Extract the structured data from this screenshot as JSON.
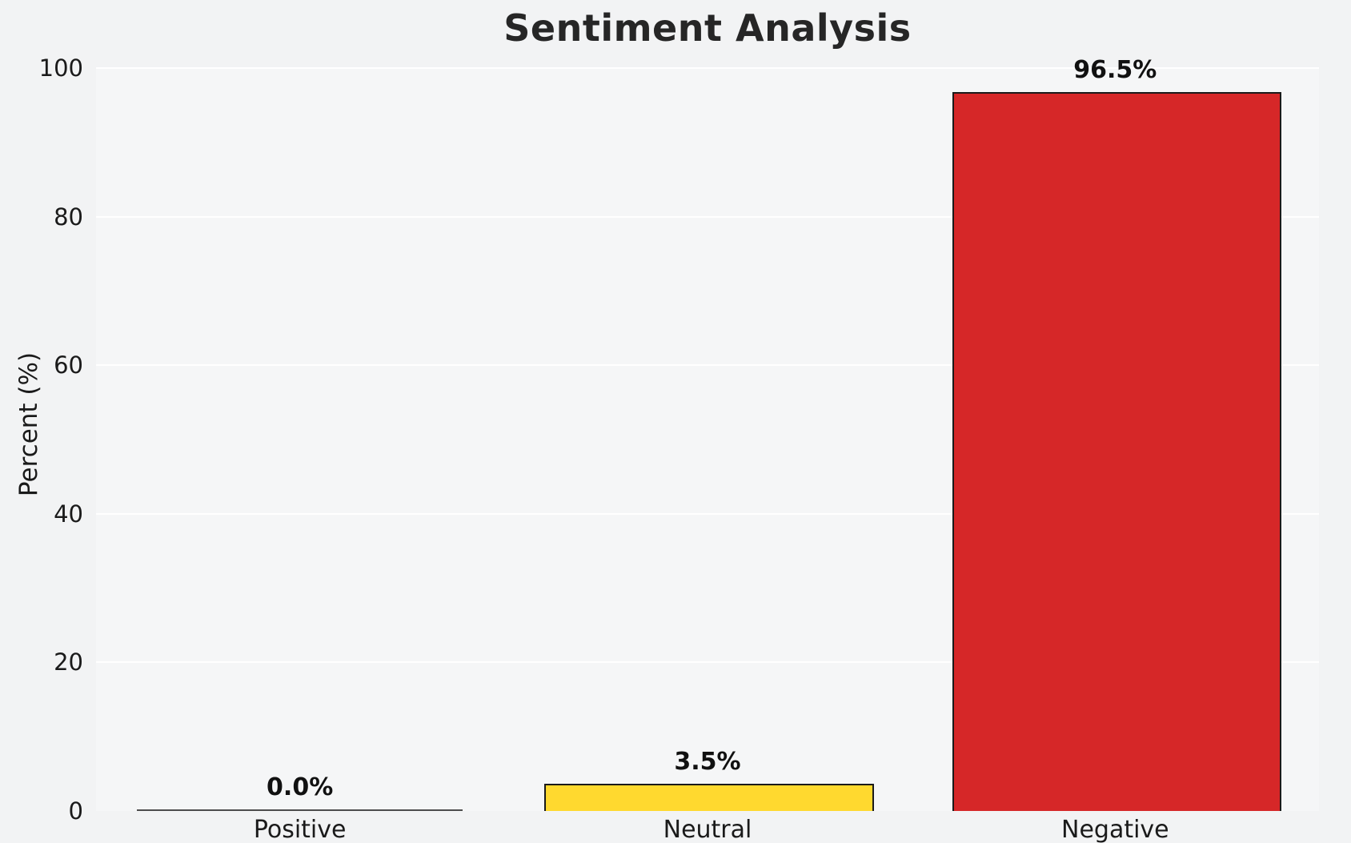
{
  "chart": {
    "title": "Sentiment Analysis",
    "ylabel": "Percent (%)"
  },
  "chart_data": {
    "type": "bar",
    "title": "Sentiment Analysis",
    "xlabel": "",
    "ylabel": "Percent (%)",
    "categories": [
      "Positive",
      "Neutral",
      "Negative"
    ],
    "values": [
      0.0,
      3.5,
      96.5
    ],
    "value_labels": [
      "0.0%",
      "3.5%",
      "96.5%"
    ],
    "bar_colors": [
      "#2ca02c",
      "#FFD92F",
      "#D62728"
    ],
    "bar_edge_color": "#1a1a1a",
    "ylim": [
      0,
      100
    ],
    "yticks": [
      0,
      20,
      40,
      60,
      80,
      100
    ],
    "grid": true,
    "legend": false,
    "background_color": "#f2f3f4",
    "gridline_color": "#ffffff"
  }
}
